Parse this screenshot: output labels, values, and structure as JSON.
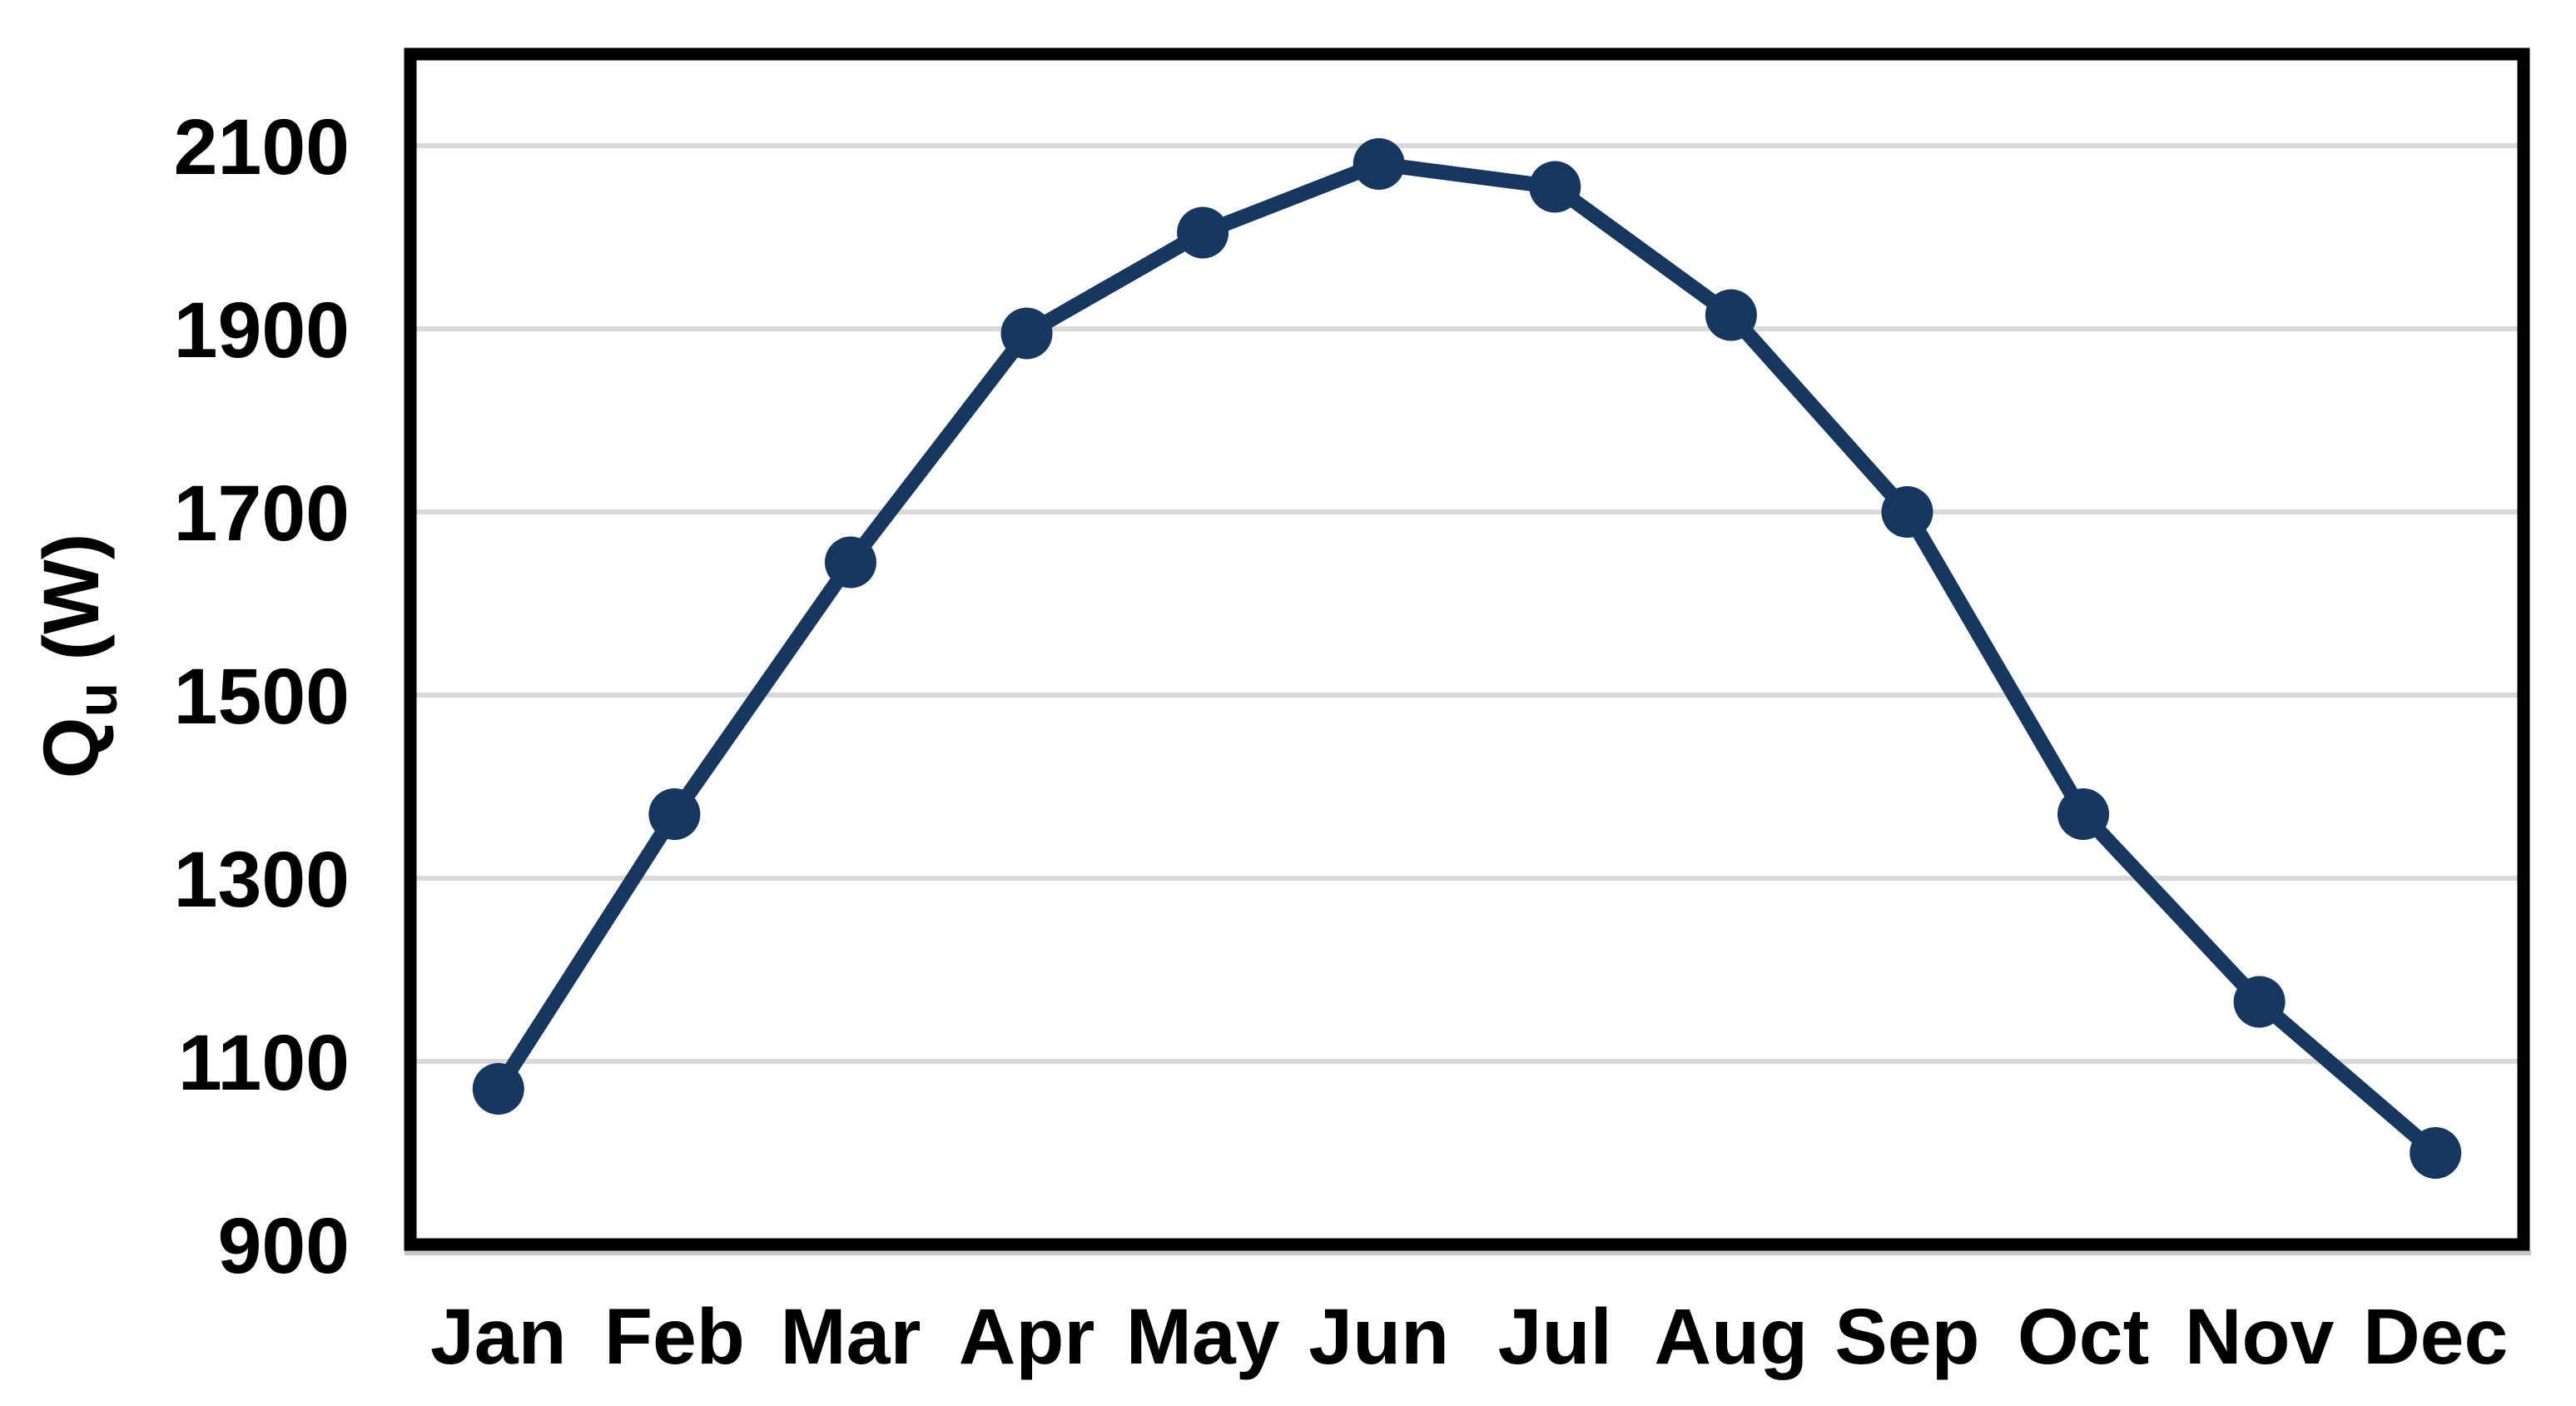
{
  "chart_data": {
    "type": "line",
    "title": "",
    "x_categories": [
      "Jan",
      "Feb",
      "Mar",
      "Apr",
      "May",
      "Jun",
      "Jul",
      "Aug",
      "Sep",
      "Oct",
      "Nov",
      "Dec"
    ],
    "series": [
      {
        "values": [
          1070,
          1370,
          1645,
          1895,
          2005,
          2080,
          2055,
          1915,
          1700,
          1370,
          1165,
          1000
        ]
      }
    ],
    "xlabel": "",
    "ylabel_parts": {
      "main": "Q",
      "sub": "u",
      "rest": " (W)"
    },
    "y_ticks": [
      900,
      1100,
      1300,
      1500,
      1700,
      1900,
      2100
    ],
    "ylim": [
      900,
      2200
    ],
    "grid": "horizontal",
    "legend": "none",
    "colors": {
      "line": "#17375E",
      "marker": "#17375E",
      "gridline": "#D9D9D9",
      "axis_shadow": "#C6C6C6",
      "axis": "#000000",
      "background": "#FFFFFF",
      "label": "#000000"
    }
  }
}
